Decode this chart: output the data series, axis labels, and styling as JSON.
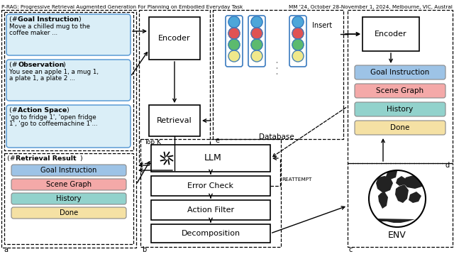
{
  "title_left": "P-RAG: Progressive Retrieval Augmented Generation For Planning on Embodied Everyday Task",
  "title_right": "MM '24, October 28-November 1, 2024, Melbourne, VIC, Austral",
  "bg_color": "#ffffff",
  "light_blue_box": "#daeef7",
  "light_blue_border": "#5b9bd5",
  "goal_instr_color": "#9dc3e6",
  "scene_graph_color": "#f4a9a8",
  "history_color": "#92d2cc",
  "done_color": "#f5e1a4",
  "tl_blue": "#4da6d9",
  "tl_red": "#e05252",
  "tl_green": "#5cba6e",
  "tl_yellow": "#f0e88a",
  "tl_border": "#3a7abf"
}
